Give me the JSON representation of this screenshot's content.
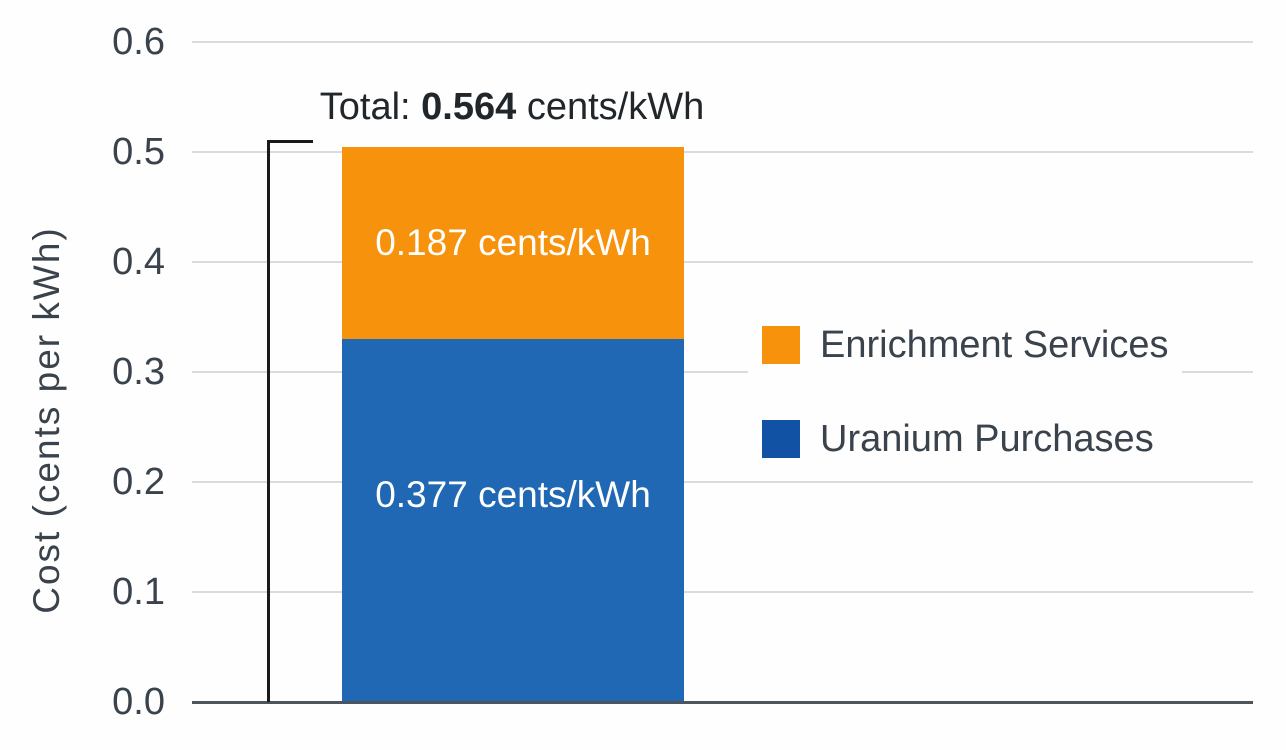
{
  "chart_data": {
    "type": "bar",
    "stacked": true,
    "orientation": "vertical",
    "title": "Total: 0.564 cents/kWh",
    "title_parts": {
      "prefix": "Total: ",
      "value": "0.564",
      "suffix": " cents/kWh"
    },
    "ylabel": "Cost (cents per kWh)",
    "ylim": [
      0,
      0.6
    ],
    "ytick_step": 0.1,
    "yticks": [
      "0.6",
      "0.5",
      "0.4",
      "0.3",
      "0.2",
      "0.1",
      "0.0"
    ],
    "grid": "horizontal",
    "categories": [
      ""
    ],
    "series": [
      {
        "name": "Uranium Purchases",
        "value": 0.377,
        "unit": "cents/kWh",
        "bar_label": "0.377 cents/kWh",
        "bar_color": "#2068b3",
        "drawn_height_units": 0.33
      },
      {
        "name": "Enrichment Services",
        "value": 0.187,
        "unit": "cents/kWh",
        "bar_label": "0.187 cents/kWh",
        "bar_color": "#f6920b",
        "drawn_height_units": 0.175
      }
    ],
    "total": {
      "value": 0.564,
      "unit": "cents/kWh"
    },
    "legend": {
      "position": "center-right",
      "entries": [
        {
          "label": "Enrichment Services",
          "color": "#f6920b"
        },
        {
          "label": "Uranium Purchases",
          "color": "#1152a4"
        }
      ]
    },
    "annotations": {
      "total_bracket": "black bracket left of the bar spanning its full height, marking the total"
    }
  },
  "style": {
    "background": "#fdfefd",
    "gridline_color": "#d8dcde",
    "axis_line_color": "#4c545e",
    "tick_label_color": "#3a424c",
    "title_color": "#21262b",
    "legend_text_color": "#3a424c",
    "bar_label_color": "#ffffff",
    "bracket_color": "#1a1a1a"
  }
}
